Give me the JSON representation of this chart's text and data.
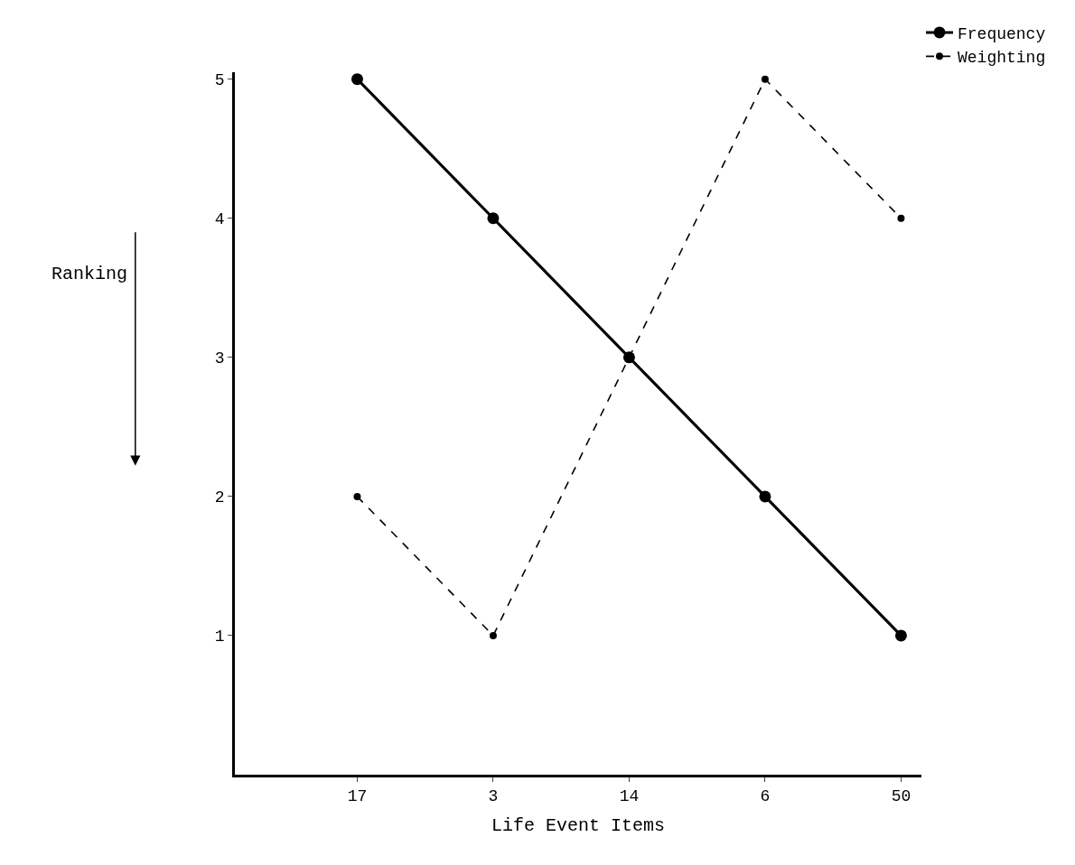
{
  "chart_data": {
    "type": "line",
    "xlabel": "Life Event Items",
    "ylabel": "Ranking",
    "categories": [
      "17",
      "3",
      "14",
      "6",
      "50"
    ],
    "series": [
      {
        "name": "Frequency",
        "color": "#000000",
        "line_style": "solid",
        "values": [
          5,
          4,
          3,
          2,
          1
        ]
      },
      {
        "name": "Weighting",
        "color": "#000000",
        "line_style": "dashed",
        "values": [
          2,
          1,
          3,
          5,
          4
        ]
      }
    ],
    "ylim": [
      0,
      5.05
    ],
    "yticks": [
      1,
      2,
      3,
      4,
      5
    ],
    "legend": "top right",
    "marker": "circle"
  }
}
